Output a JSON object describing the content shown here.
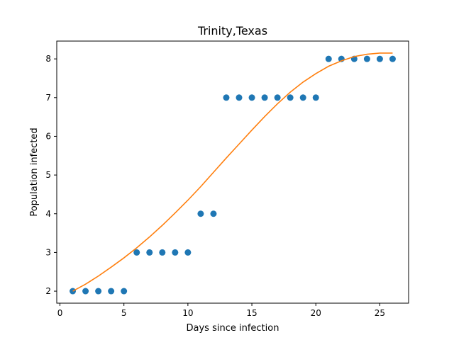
{
  "chart_data": {
    "type": "scatter",
    "title": "Trinity,Texas",
    "xlabel": "Days since infection",
    "ylabel": "Population infected",
    "xlim": [
      -0.25,
      27.25
    ],
    "ylim": [
      1.69,
      8.46
    ],
    "xticks": [
      0,
      5,
      10,
      15,
      20,
      25
    ],
    "yticks": [
      2,
      3,
      4,
      5,
      6,
      7,
      8
    ],
    "grid": false,
    "series": [
      {
        "type": "scatter",
        "color": "#1f77b4",
        "x": [
          1,
          2,
          3,
          4,
          5,
          6,
          7,
          8,
          9,
          10,
          11,
          12,
          13,
          14,
          15,
          16,
          17,
          18,
          19,
          20,
          21,
          22,
          23,
          24,
          25,
          26
        ],
        "y": [
          2,
          2,
          2,
          2,
          2,
          3,
          3,
          3,
          3,
          3,
          4,
          4,
          7,
          7,
          7,
          7,
          7,
          7,
          7,
          7,
          8,
          8,
          8,
          8,
          8,
          8
        ]
      },
      {
        "type": "line",
        "color": "#ff7f0e",
        "x": [
          1,
          2,
          3,
          4,
          5,
          6,
          7,
          8,
          9,
          10,
          11,
          12,
          13,
          14,
          15,
          16,
          17,
          18,
          19,
          20,
          21,
          22,
          23,
          24,
          25,
          26
        ],
        "y": [
          2.0,
          2.18,
          2.39,
          2.62,
          2.86,
          3.12,
          3.4,
          3.7,
          4.02,
          4.35,
          4.7,
          5.07,
          5.44,
          5.8,
          6.16,
          6.51,
          6.84,
          7.14,
          7.4,
          7.62,
          7.81,
          7.95,
          8.06,
          8.12,
          8.15,
          8.15
        ]
      }
    ]
  }
}
